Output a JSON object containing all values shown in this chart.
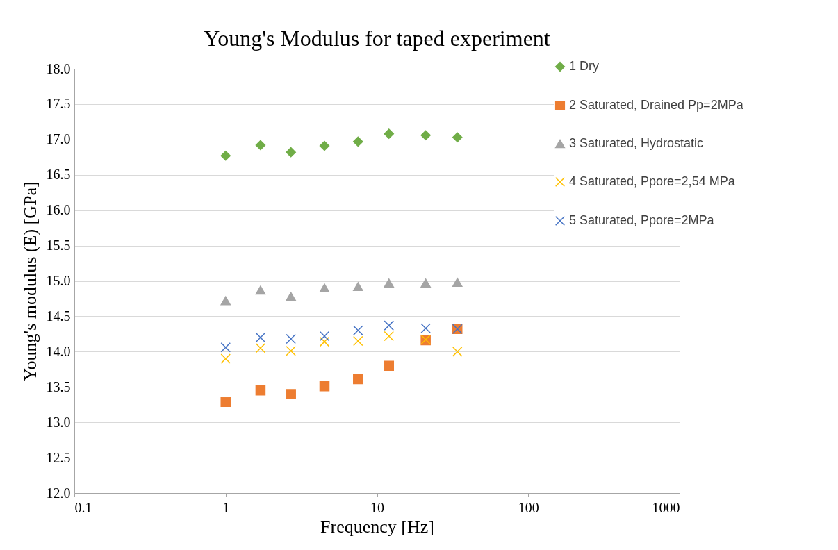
{
  "chart_data": {
    "type": "scatter",
    "title": "Young's Modulus for taped experiment",
    "xlabel": "Frequency [Hz]",
    "ylabel": "Young's modulus (E) [GPa]",
    "x": [
      1,
      1.7,
      2.7,
      4.5,
      7.5,
      12,
      21,
      34
    ],
    "series": [
      {
        "name": "1 Dry",
        "color": "#70ad47",
        "marker": "diamond",
        "values": [
          16.77,
          16.92,
          16.82,
          16.91,
          16.97,
          17.08,
          17.06,
          17.03
        ]
      },
      {
        "name": " 2 Saturated, Drained Pp=2MPa",
        "color": "#ed7d31",
        "marker": "square",
        "values": [
          13.29,
          13.45,
          13.4,
          13.51,
          13.61,
          13.8,
          14.16,
          14.32
        ]
      },
      {
        "name": "3 Saturated, Hydrostatic",
        "color": "#a5a5a5",
        "marker": "triangle",
        "values": [
          14.72,
          14.87,
          14.78,
          14.9,
          14.92,
          14.97,
          14.97,
          14.98
        ]
      },
      {
        "name": "4 Saturated, Ppore=2,54 MPa",
        "color": "#ffc000",
        "marker": "cross",
        "values": [
          13.9,
          14.05,
          14.01,
          14.14,
          14.15,
          14.22,
          14.17,
          14.0
        ]
      },
      {
        "name": "5 Saturated, Ppore=2MPa",
        "color": "#4472c4",
        "marker": "cross",
        "values": [
          14.06,
          14.2,
          14.18,
          14.22,
          14.3,
          14.37,
          14.33,
          14.32
        ]
      }
    ],
    "log": "x",
    "xlim": [
      0.1,
      1000
    ],
    "xticks": [
      0.1,
      1,
      10,
      100,
      1000
    ],
    "ylim": [
      12,
      18
    ],
    "yticks": [
      {
        "value": 12,
        "label": "12.0"
      },
      {
        "value": 12.5,
        "label": "12.5"
      },
      {
        "value": 13,
        "label": "13.0"
      },
      {
        "value": 13.5,
        "label": "13.5"
      },
      {
        "value": 14,
        "label": "14.0"
      },
      {
        "value": 14.5,
        "label": "14.5"
      },
      {
        "value": 15,
        "label": "15.0"
      },
      {
        "value": 15.5,
        "label": "15.5"
      },
      {
        "value": 16,
        "label": "16.0"
      },
      {
        "value": 16.5,
        "label": "16.5"
      },
      {
        "value": 17,
        "label": "17.0"
      },
      {
        "value": 17.5,
        "label": "17.5"
      },
      {
        "value": 18,
        "label": "18.0"
      }
    ],
    "grid": "y",
    "legend": "top right"
  }
}
